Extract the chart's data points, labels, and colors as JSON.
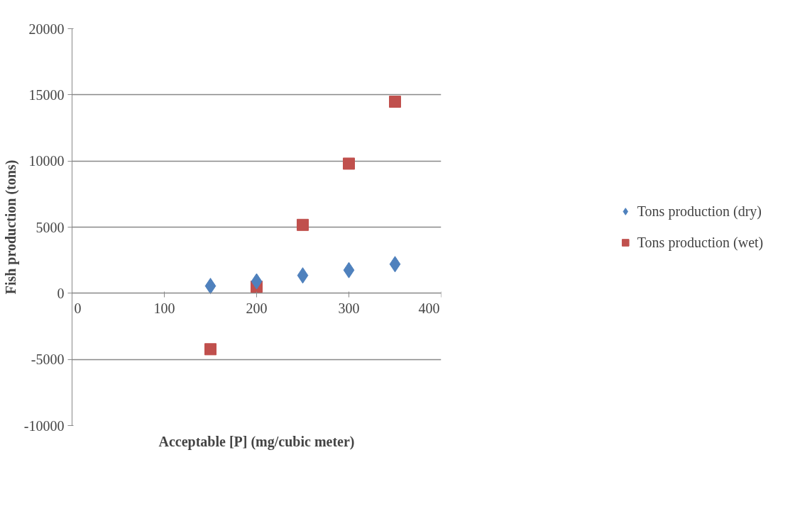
{
  "chart_data": {
    "type": "scatter",
    "xlabel": "Acceptable [P] (mg/cubic meter)",
    "ylabel": "Fish production (tons)",
    "x": [
      150,
      200,
      250,
      300,
      350
    ],
    "series": [
      {
        "name": "Tons production (dry)",
        "color": "#4f81bd",
        "marker": "diamond",
        "values": [
          550,
          900,
          1350,
          1750,
          2200
        ]
      },
      {
        "name": "Tons production (wet)",
        "color": "#c0504d",
        "marker": "square",
        "values": [
          -4230,
          500,
          5170,
          9800,
          14480
        ]
      }
    ],
    "xlim": [
      0,
      400
    ],
    "xticks": [
      0,
      100,
      200,
      300,
      400
    ],
    "ylim": [
      -10000,
      20000
    ],
    "yticks": [
      -10000,
      -5000,
      0,
      5000,
      10000,
      15000,
      20000
    ],
    "grid": "y",
    "legend": "right"
  }
}
